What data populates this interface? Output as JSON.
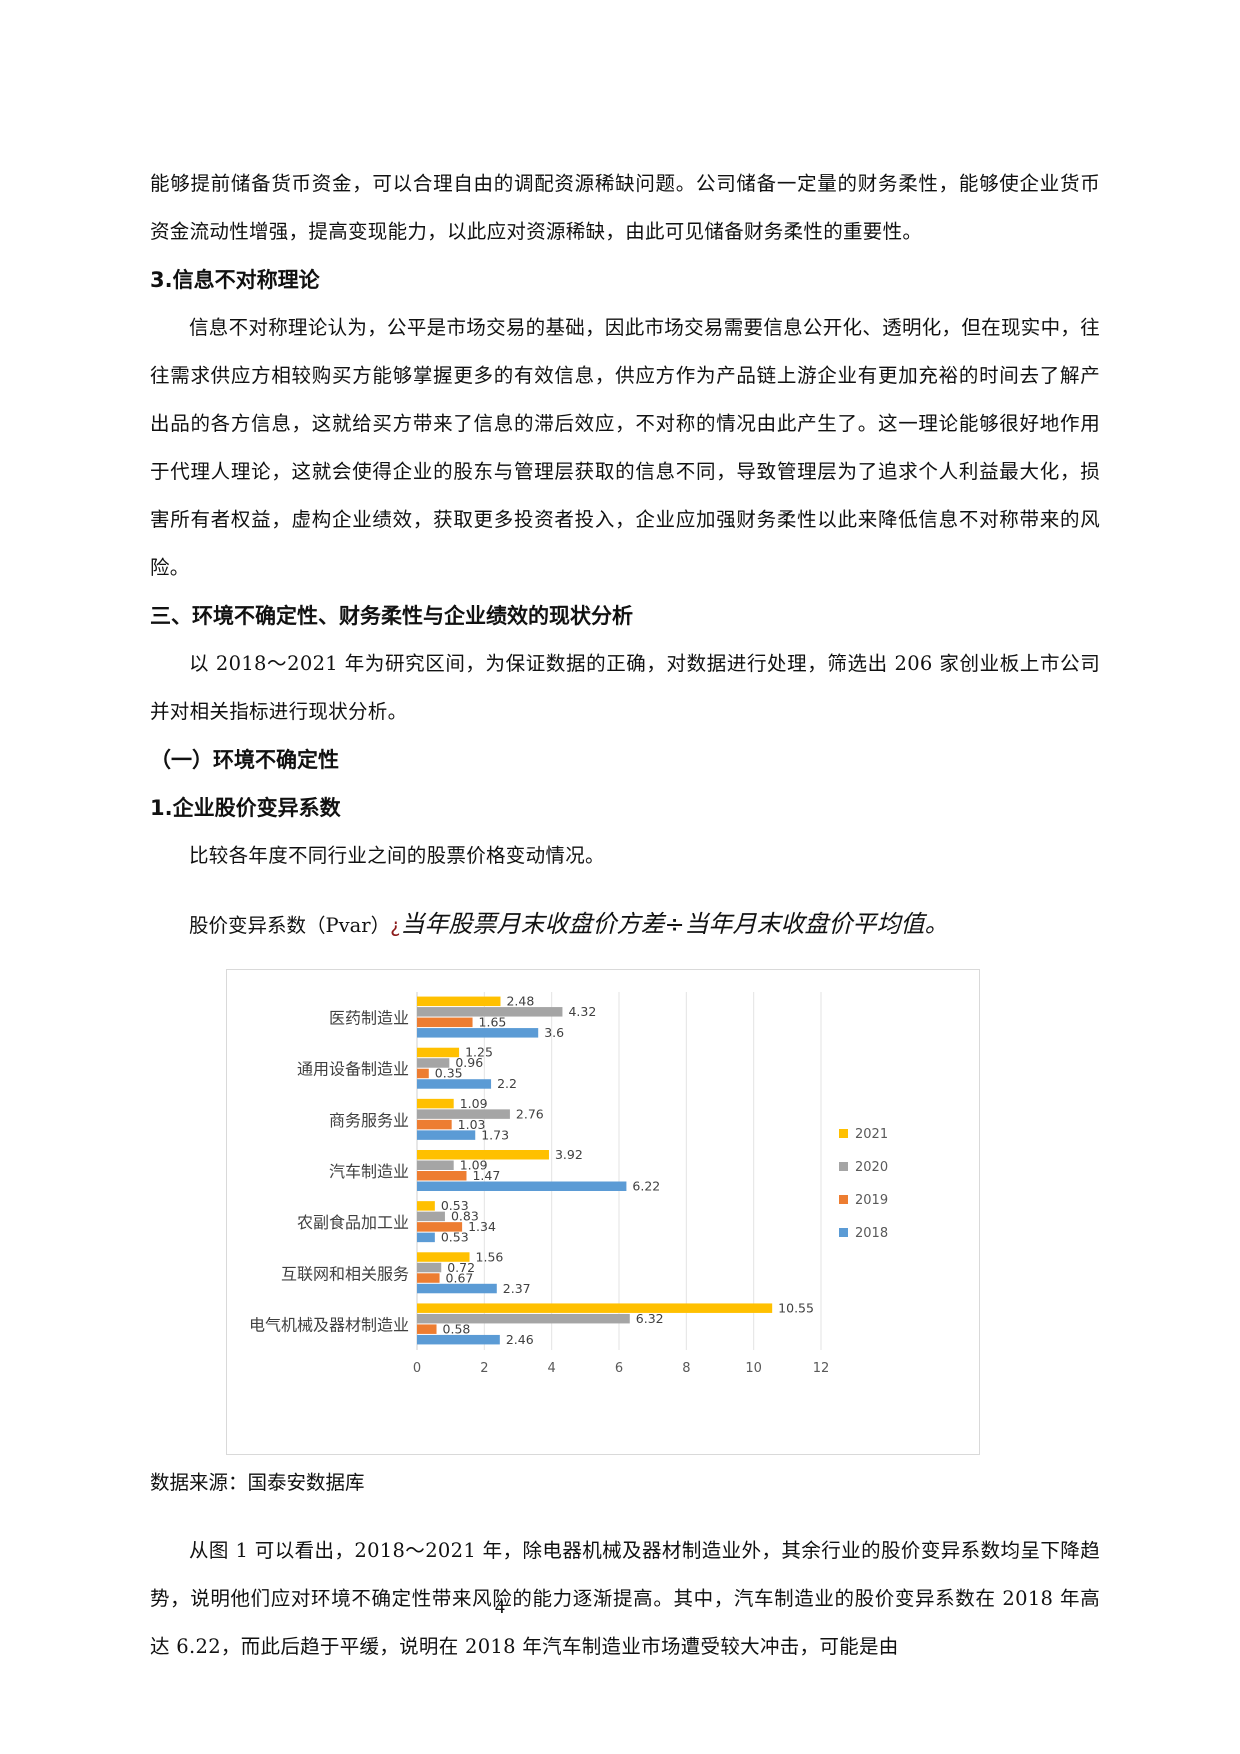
{
  "paragraphs": {
    "p1": "能够提前储备货币资金，可以合理自由的调配资源稀缺问题。公司储备一定量的财务柔性，能够使企业货币资金流动性增强，提高变现能力，以此应对资源稀缺，由此可见储备财务柔性的重要性。",
    "h_info": "3.信息不对称理论",
    "p2": "信息不对称理论认为，公平是市场交易的基础，因此市场交易需要信息公开化、透明化，但在现实中，往往需求供应方相较购买方能够掌握更多的有效信息，供应方作为产品链上游企业有更加充裕的时间去了解产出品的各方信息，这就给买方带来了信息的滞后效应，不对称的情况由此产生了。这一理论能够很好地作用于代理人理论，这就会使得企业的股东与管理层获取的信息不同，导致管理层为了追求个人利益最大化，损害所有者权益，虚构企业绩效，获取更多投资者投入，企业应加强财务柔性以此来降低信息不对称带来的风险。",
    "h_section": "三、环境不确定性、财务柔性与企业绩效的现状分析",
    "p3": "以 2018～2021 年为研究区间，为保证数据的正确，对数据进行处理，筛选出 206 家创业板上市公司并对相关指标进行现状分析。",
    "h_sub": "（一）环境不确定性",
    "h_item": "1.企业股价变异系数",
    "p4": "比较各年度不同行业之间的股票价格变动情况。",
    "formula_prefix": "股价变异系数（Pvar）",
    "formula_glyph": "¿",
    "formula_italic": "当年股票月末收盘价方差÷当年月末收盘价平均值",
    "formula_end": "。",
    "source": "数据来源：国泰安数据库",
    "p5": "从图 1 可以看出，2018～2021 年，除电器机械及器材制造业外，其余行业的股价变异系数均呈下降趋势，说明他们应对环境不确定性带来风险的能力逐渐提高。其中，汽车制造业的股价变异系数在 2018 年高达 6.22，而此后趋于平缓，说明在 2018 年汽车制造业市场遭受较大冲击，可能是由",
    "page_number": "4"
  },
  "chart_data": {
    "type": "bar",
    "orientation": "horizontal",
    "categories": [
      "医药制造业",
      "通用设备制造业",
      "商务服务业",
      "汽车制造业",
      "农副食品加工业",
      "互联网和相关服务",
      "电气机械及器材制造业"
    ],
    "series": [
      {
        "name": "2021",
        "color": "#FFC000",
        "values": [
          2.48,
          1.25,
          1.09,
          3.92,
          0.53,
          1.56,
          10.55
        ]
      },
      {
        "name": "2020",
        "color": "#A5A5A5",
        "values": [
          4.32,
          0.96,
          2.76,
          1.09,
          0.83,
          0.72,
          6.32
        ]
      },
      {
        "name": "2019",
        "color": "#ED7D31",
        "values": [
          1.65,
          0.35,
          1.03,
          1.47,
          1.34,
          0.67,
          0.58
        ]
      },
      {
        "name": "2018",
        "color": "#5B9BD5",
        "values": [
          3.6,
          2.2,
          1.73,
          6.22,
          0.53,
          2.37,
          2.46
        ]
      }
    ],
    "xlim": [
      0,
      12
    ],
    "xticks": [
      0,
      2,
      4,
      6,
      8,
      10,
      12
    ],
    "grid": true,
    "legend": "right",
    "title": "",
    "xlabel": "",
    "ylabel": ""
  }
}
